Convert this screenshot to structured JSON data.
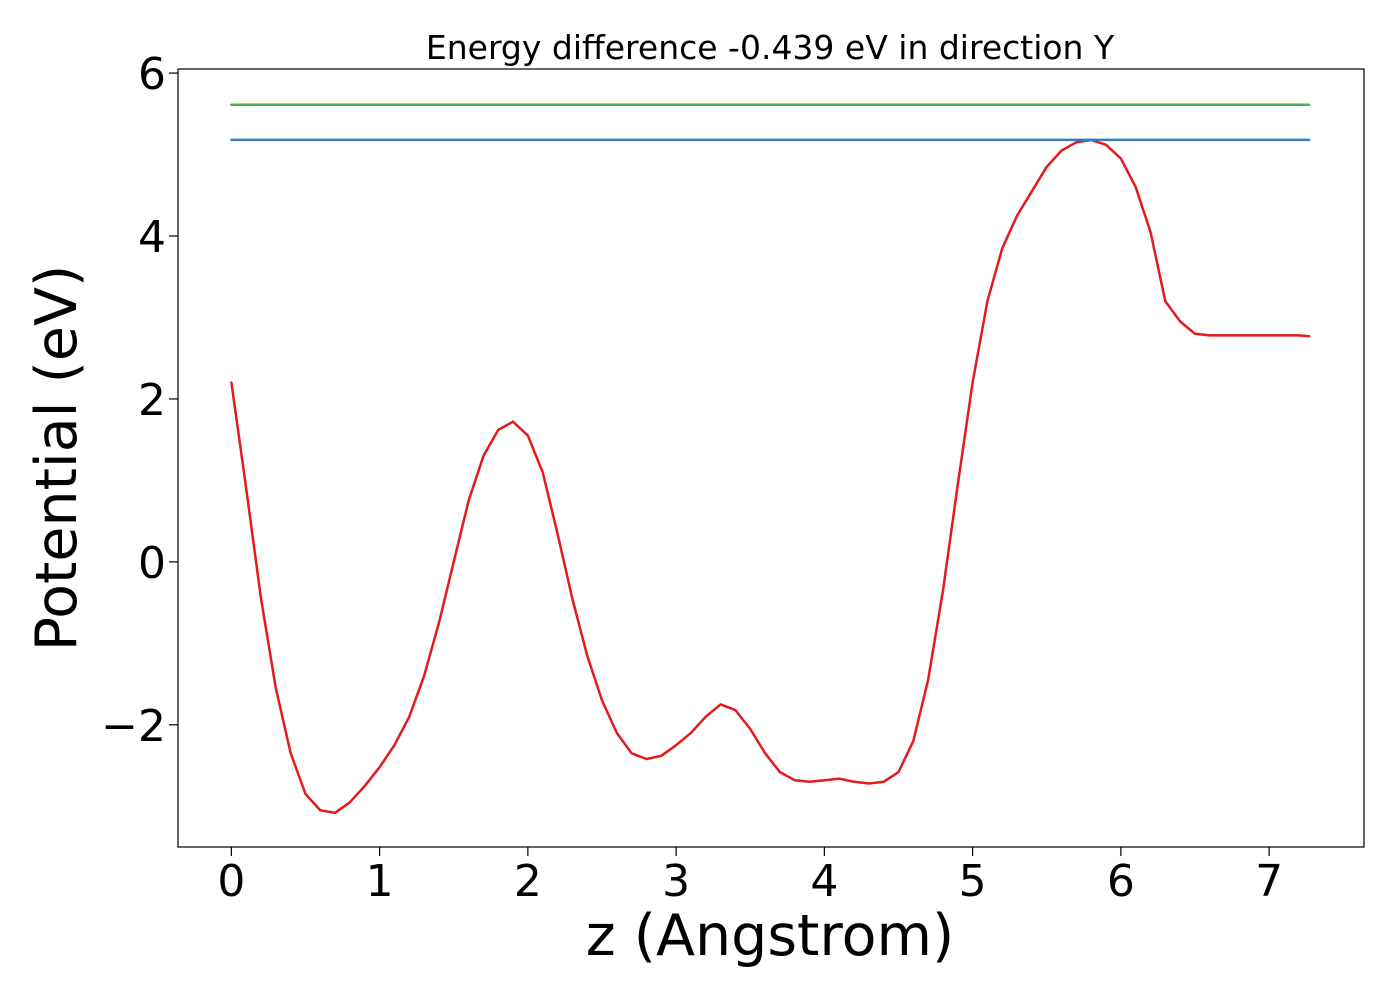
{
  "chart_data": {
    "type": "line",
    "title": "Energy difference -0.439 eV in direction Y",
    "xlabel": "z (Angstrom)",
    "ylabel": "Potential (eV)",
    "xlim": [
      -0.36,
      7.64
    ],
    "ylim": [
      -3.5,
      6.05
    ],
    "xticks": [
      0,
      1,
      2,
      3,
      4,
      5,
      6,
      7
    ],
    "xtick_labels": [
      "0",
      "1",
      "2",
      "3",
      "4",
      "5",
      "6",
      "7"
    ],
    "yticks": [
      -2,
      0,
      2,
      4,
      6
    ],
    "ytick_labels": [
      "−2",
      "0",
      "2",
      "4",
      "6"
    ],
    "grid": false,
    "series": [
      {
        "color": "#e41a1c",
        "x": [
          0,
          0.1,
          0.2,
          0.3,
          0.4,
          0.5,
          0.6,
          0.7,
          0.8,
          0.9,
          1.0,
          1.1,
          1.2,
          1.3,
          1.4,
          1.5,
          1.6,
          1.7,
          1.8,
          1.9,
          2.0,
          2.1,
          2.2,
          2.3,
          2.4,
          2.5,
          2.6,
          2.7,
          2.8,
          2.9,
          3.0,
          3.1,
          3.2,
          3.3,
          3.4,
          3.5,
          3.6,
          3.7,
          3.8,
          3.9,
          4.0,
          4.1,
          4.2,
          4.3,
          4.4,
          4.5,
          4.6,
          4.7,
          4.8,
          4.9,
          5.0,
          5.1,
          5.2,
          5.3,
          5.4,
          5.5,
          5.6,
          5.7,
          5.8,
          5.9,
          6.0,
          6.1,
          6.2,
          6.3,
          6.4,
          6.5,
          6.6,
          6.7,
          6.8,
          6.9,
          7.0,
          7.1,
          7.2,
          7.27
        ],
        "y": [
          2.2,
          0.9,
          -0.45,
          -1.55,
          -2.35,
          -2.85,
          -3.05,
          -3.08,
          -2.95,
          -2.75,
          -2.52,
          -2.25,
          -1.9,
          -1.4,
          -0.75,
          0.0,
          0.75,
          1.3,
          1.62,
          1.72,
          1.55,
          1.1,
          0.35,
          -0.45,
          -1.15,
          -1.7,
          -2.1,
          -2.35,
          -2.42,
          -2.38,
          -2.25,
          -2.1,
          -1.9,
          -1.75,
          -1.82,
          -2.05,
          -2.35,
          -2.58,
          -2.68,
          -2.7,
          -2.68,
          -2.66,
          -2.7,
          -2.72,
          -2.7,
          -2.58,
          -2.2,
          -1.45,
          -0.35,
          0.95,
          2.2,
          3.2,
          3.85,
          4.25,
          4.55,
          4.85,
          5.05,
          5.15,
          5.18,
          5.12,
          4.95,
          4.6,
          4.05,
          3.2,
          2.95,
          2.8,
          2.78,
          2.78,
          2.78,
          2.78,
          2.78,
          2.78,
          2.78,
          2.77
        ]
      },
      {
        "color": "#377eb8",
        "x": [
          0,
          7.27
        ],
        "y": [
          5.18,
          5.18
        ]
      },
      {
        "color": "#4daf4a",
        "x": [
          0,
          7.27
        ],
        "y": [
          5.61,
          5.61
        ]
      }
    ]
  }
}
